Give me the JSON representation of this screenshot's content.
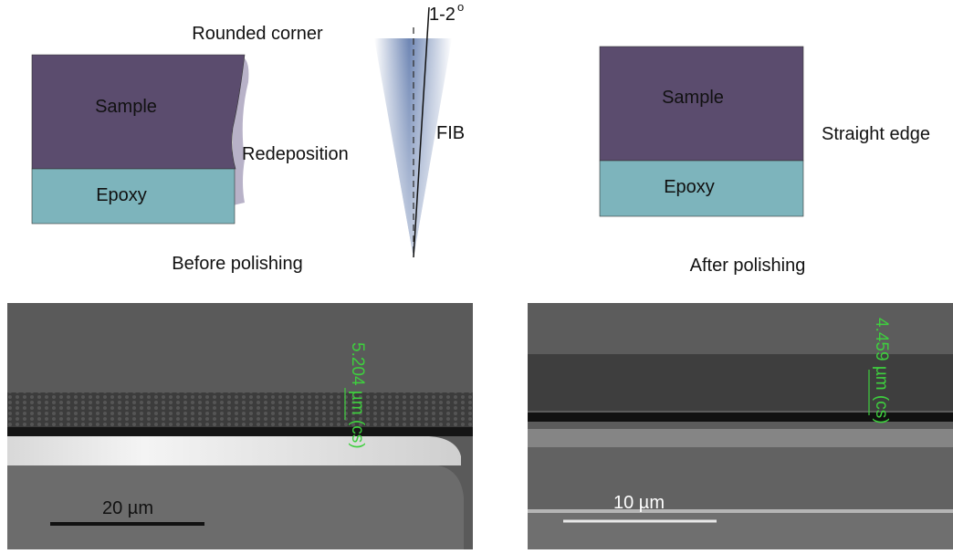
{
  "top_left": {
    "title": "Rounded corner",
    "sample": "Sample",
    "epoxy": "Epoxy",
    "redeposition": "Redeposition",
    "caption": "Before polishing"
  },
  "beam": {
    "angle": "1-2",
    "angle_unit": "o",
    "label": "FIB"
  },
  "top_right": {
    "sample": "Sample",
    "epoxy": "Epoxy",
    "edge": "Straight edge",
    "caption": "After polishing"
  },
  "sem_left": {
    "measurement": "5.204 µm (cs)",
    "scale_bar": "20 µm"
  },
  "sem_right": {
    "measurement": "4.459 µm (cs)",
    "scale_bar": "10 µm"
  }
}
